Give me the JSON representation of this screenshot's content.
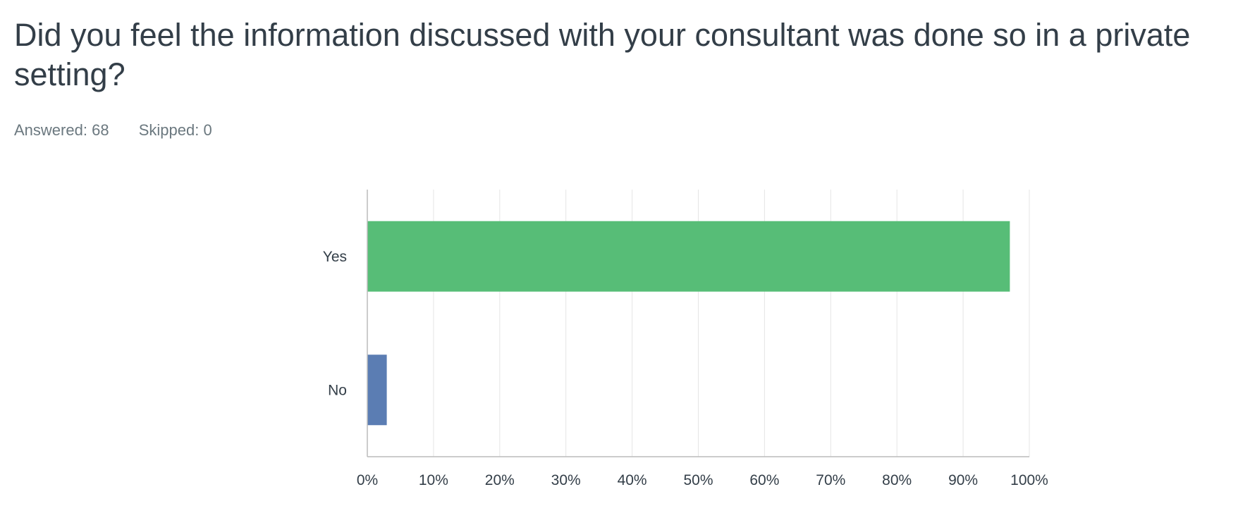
{
  "question": {
    "title": "Did you feel the information discussed with your consultant was done so in a private setting?"
  },
  "stats": {
    "answered_label": "Answered:",
    "answered_value": "68",
    "skipped_label": "Skipped:",
    "skipped_value": "0"
  },
  "chart_data": {
    "type": "bar",
    "orientation": "horizontal",
    "categories": [
      "Yes",
      "No"
    ],
    "values": [
      97.06,
      2.94
    ],
    "colors": [
      "#57bd77",
      "#5b7db3"
    ],
    "x_ticks": [
      "0%",
      "10%",
      "20%",
      "30%",
      "40%",
      "50%",
      "60%",
      "70%",
      "80%",
      "90%",
      "100%"
    ],
    "xlim": [
      0,
      100
    ],
    "grid": true,
    "grid_color": "#e5e5e5",
    "axis_color": "#bbbbbb"
  }
}
